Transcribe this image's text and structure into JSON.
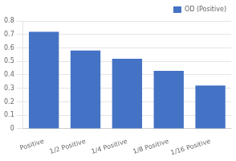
{
  "chart_data": {
    "type": "bar",
    "categories": [
      "Positive",
      "1/2 Positive",
      "1/4 Positive",
      "1/8 Positive",
      "1/16 Positive"
    ],
    "series": [
      {
        "name": "OD (Positive)",
        "color": "#4472C4",
        "values": [
          0.72,
          0.58,
          0.52,
          0.43,
          0.32
        ]
      }
    ],
    "ylim": [
      0,
      0.8
    ],
    "yticks": [
      0,
      0.1,
      0.2,
      0.3,
      0.4,
      0.5,
      0.6,
      0.7,
      0.8
    ],
    "grid": true,
    "legend": "upper right"
  }
}
